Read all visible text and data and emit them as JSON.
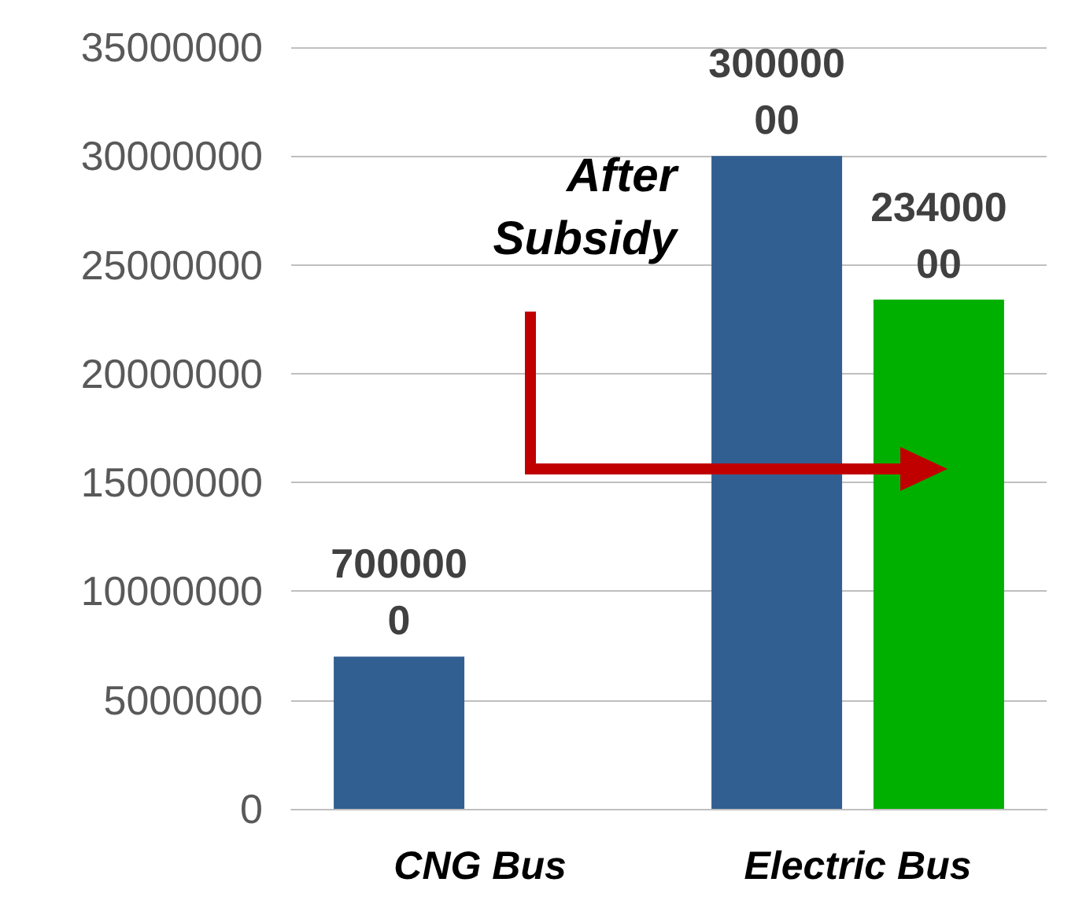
{
  "chart_data": {
    "type": "bar",
    "categories": [
      "CNG Bus",
      "Electric Bus"
    ],
    "series": [
      {
        "color": "#325f91",
        "values": [
          7000000,
          30000000
        ]
      },
      {
        "color": "#00b000",
        "values": [
          null,
          23400000
        ]
      }
    ],
    "ylim": [
      0,
      35000000
    ],
    "yticks": [
      0,
      5000000,
      10000000,
      15000000,
      20000000,
      25000000,
      30000000,
      35000000
    ],
    "grid": "y",
    "data_labels": true,
    "annotations": [
      "After Subsidy"
    ]
  }
}
